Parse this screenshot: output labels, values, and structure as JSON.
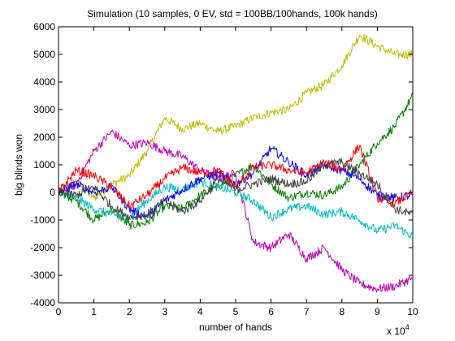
{
  "chart_data": {
    "type": "line",
    "title": "Simulation (10 samples, 0 EV, std = 100BB/100hands, 100k hands)",
    "xlabel": "number of hands",
    "ylabel": "big blinds won",
    "x_exponent_label": "x 10",
    "x_exponent_power": "4",
    "xlim": [
      0,
      100000
    ],
    "ylim": [
      -4000,
      6000
    ],
    "grid": false,
    "legend": "none",
    "x_ticks": [
      0,
      10000,
      20000,
      30000,
      40000,
      50000,
      60000,
      70000,
      80000,
      90000,
      100000
    ],
    "x_tick_labels": [
      "0",
      "1",
      "2",
      "3",
      "4",
      "5",
      "6",
      "7",
      "8",
      "9",
      "10"
    ],
    "y_ticks": [
      -4000,
      -3000,
      -2000,
      -1000,
      0,
      1000,
      2000,
      3000,
      4000,
      5000,
      6000
    ],
    "y_tick_labels": [
      "-4000",
      "-3000",
      "-2000",
      "-1000",
      "0",
      "1000",
      "2000",
      "3000",
      "4000",
      "5000",
      "6000"
    ],
    "x": [
      0,
      5000,
      10000,
      15000,
      20000,
      25000,
      30000,
      35000,
      40000,
      45000,
      50000,
      55000,
      60000,
      65000,
      70000,
      75000,
      80000,
      85000,
      90000,
      95000,
      100000
    ],
    "series": [
      {
        "color": "#bfbf00",
        "values": [
          0,
          400,
          -200,
          300,
          600,
          1500,
          2700,
          2300,
          2500,
          2200,
          2400,
          2700,
          2900,
          3000,
          3600,
          3900,
          4600,
          5700,
          5300,
          5000,
          5000
        ]
      },
      {
        "color": "#008000",
        "values": [
          0,
          -300,
          -1000,
          -600,
          -1200,
          -1100,
          -500,
          -600,
          -100,
          200,
          600,
          1000,
          300,
          -200,
          0,
          -100,
          200,
          1000,
          1800,
          2400,
          3500
        ]
      },
      {
        "color": "#bf00bf",
        "values": [
          0,
          300,
          1500,
          2200,
          1700,
          1800,
          1500,
          1300,
          800,
          500,
          700,
          -1800,
          -2000,
          -1500,
          -2400,
          -2000,
          -2800,
          -3300,
          -3500,
          -3400,
          -3100
        ]
      },
      {
        "color": "#00bfbf",
        "values": [
          0,
          -200,
          -600,
          -800,
          -900,
          -300,
          200,
          100,
          400,
          200,
          0,
          -300,
          -900,
          -600,
          -500,
          -800,
          -700,
          -1000,
          -1400,
          -1200,
          -1600
        ]
      },
      {
        "color": "#0000ff",
        "values": [
          0,
          300,
          0,
          200,
          -600,
          -900,
          -300,
          100,
          500,
          700,
          300,
          700,
          1600,
          1100,
          600,
          1000,
          800,
          500,
          -100,
          -200,
          -100
        ]
      },
      {
        "color": "#ff0000",
        "values": [
          0,
          800,
          600,
          200,
          -500,
          -100,
          500,
          900,
          700,
          800,
          200,
          900,
          1000,
          800,
          700,
          1100,
          800,
          1700,
          -200,
          -400,
          0
        ]
      },
      {
        "color": "#404040",
        "values": [
          0,
          -100,
          200,
          -500,
          -900,
          -800,
          -300,
          -700,
          -300,
          500,
          100,
          300,
          500,
          300,
          400,
          1000,
          1100,
          700,
          300,
          -600,
          -800
        ]
      }
    ]
  }
}
